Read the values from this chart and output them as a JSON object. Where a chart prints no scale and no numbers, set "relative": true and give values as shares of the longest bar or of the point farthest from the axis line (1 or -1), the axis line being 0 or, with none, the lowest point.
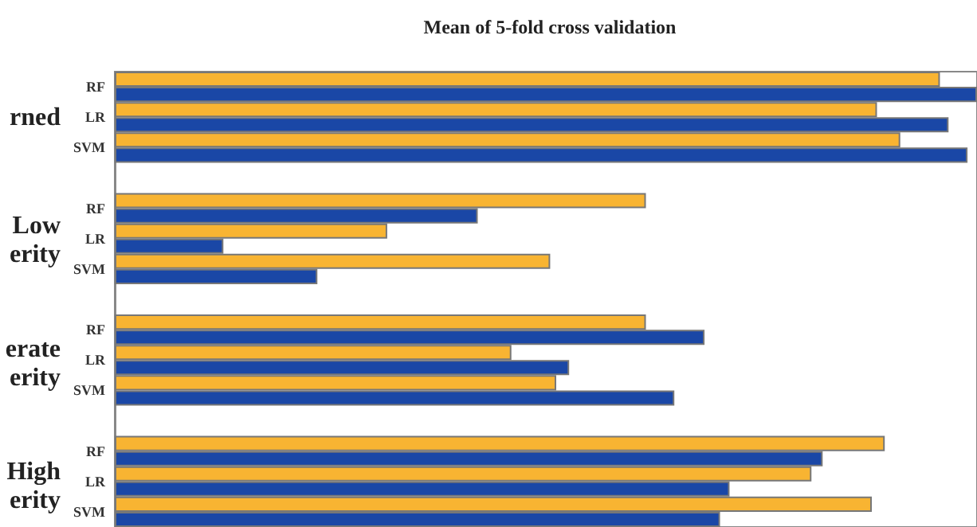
{
  "chart_data": {
    "type": "bar",
    "orientation": "horizontal",
    "relative": true,
    "title": "Mean of 5-fold cross validation",
    "categories": [
      "RF",
      "LR",
      "SVM",
      null,
      "RF",
      "LR",
      "SVM",
      null,
      "RF",
      "LR",
      "SVM",
      null,
      "RF",
      "LR",
      "SVM"
    ],
    "series": [
      {
        "color": "#f8b432",
        "values": [
          0.957,
          0.884,
          0.911,
          null,
          0.616,
          0.316,
          0.505,
          null,
          0.616,
          0.46,
          0.512,
          null,
          0.893,
          0.808,
          0.878
        ]
      },
      {
        "color": "#1a47a6",
        "values": [
          1,
          0.967,
          0.989,
          null,
          0.421,
          0.126,
          0.235,
          null,
          0.684,
          0.527,
          0.649,
          null,
          0.821,
          0.713,
          0.702
        ]
      }
    ],
    "annotations": [
      "rned",
      "Low\nerity",
      "erate\nerity",
      "High\nerity"
    ]
  }
}
